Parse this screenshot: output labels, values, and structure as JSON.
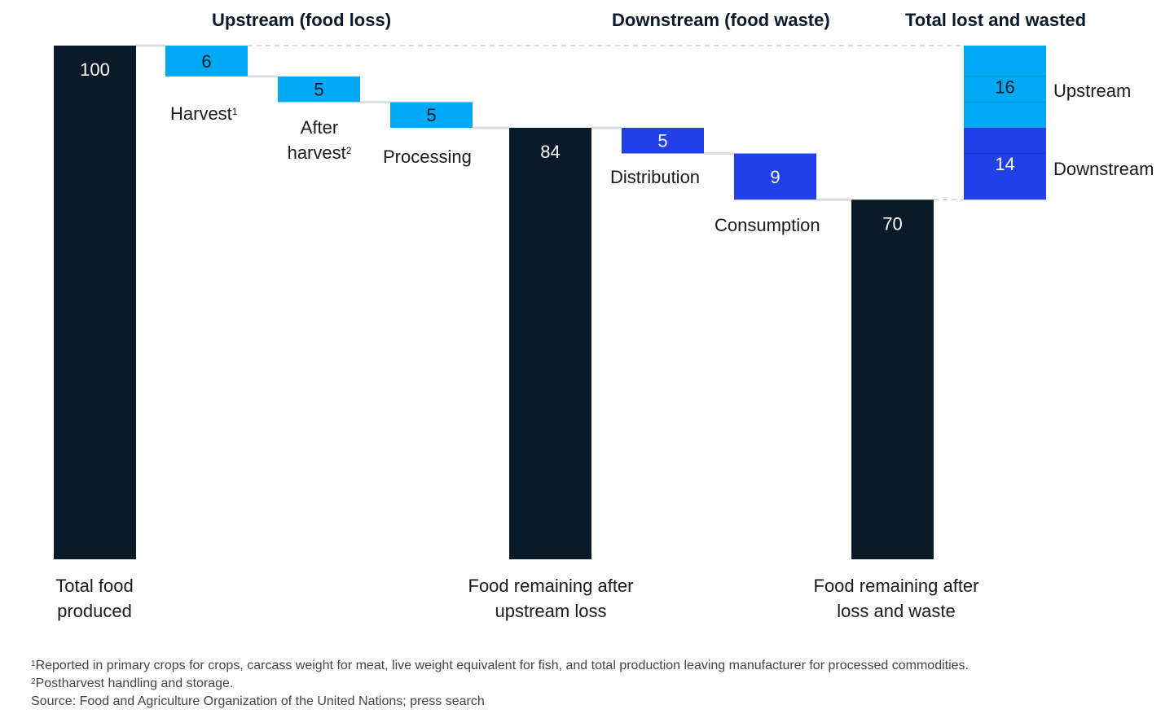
{
  "headers": {
    "upstream": "Upstream (food loss)",
    "downstream": "Downstream (food waste)",
    "total": "Total lost and wasted"
  },
  "colors": {
    "dark": "#0a1a28",
    "upstream": "#00a9f4",
    "downstream": "#2140e8",
    "connector": "#d9dde2"
  },
  "chart_data": {
    "type": "bar",
    "subtype": "waterfall",
    "ylim": [
      0,
      100
    ],
    "grid": false,
    "bars": [
      {
        "key": "total",
        "kind": "total",
        "value": 100,
        "base": 0,
        "label_text": "100",
        "category": "Total food\nproduced",
        "color": "dark"
      },
      {
        "key": "harvest",
        "kind": "loss",
        "value": 6,
        "base": 94,
        "label_text": "6",
        "category": "Harvest",
        "sup": "1",
        "color": "upstream"
      },
      {
        "key": "after_harvest",
        "kind": "loss",
        "value": 5,
        "base": 89,
        "label_text": "5",
        "category": "After\nharvest",
        "sup": "2",
        "color": "upstream"
      },
      {
        "key": "processing",
        "kind": "loss",
        "value": 5,
        "base": 84,
        "label_text": "5",
        "category": "Processing",
        "color": "upstream"
      },
      {
        "key": "after_upstream",
        "kind": "total",
        "value": 84,
        "base": 0,
        "label_text": "84",
        "category": "Food remaining after\nupstream loss",
        "color": "dark"
      },
      {
        "key": "distribution",
        "kind": "loss",
        "value": 5,
        "base": 79,
        "label_text": "5",
        "category": "Distribution",
        "color": "downstream"
      },
      {
        "key": "consumption",
        "kind": "loss",
        "value": 9,
        "base": 70,
        "label_text": "9",
        "category": "Consumption",
        "color": "downstream"
      },
      {
        "key": "after_waste",
        "kind": "total",
        "value": 70,
        "base": 0,
        "label_text": "70",
        "category": "Food remaining after\nloss and waste",
        "color": "dark"
      }
    ],
    "stack": {
      "segments": [
        {
          "key": "upstream",
          "value": 16,
          "label_text": "16",
          "name": "Upstream",
          "color": "upstream"
        },
        {
          "key": "downstream",
          "value": 14,
          "label_text": "14",
          "name": "Downstream",
          "color": "downstream"
        }
      ]
    }
  },
  "labels": {
    "total_food": [
      "Total food",
      "produced"
    ],
    "harvest": "Harvest",
    "harvest_sup": "1",
    "after_harvest": [
      "After",
      "harvest"
    ],
    "after_harvest_sup": "2",
    "processing": "Processing",
    "remaining_upstream": [
      "Food remaining after",
      "upstream loss"
    ],
    "distribution": "Distribution",
    "consumption": "Consumption",
    "remaining_waste": [
      "Food remaining after",
      "loss and waste"
    ],
    "stack_upstream": "Upstream",
    "stack_downstream": "Downstream"
  },
  "footnotes": {
    "note1_sup": "1",
    "note1": "Reported in primary crops for crops, carcass weight for meat, live weight equivalent for fish, and total production leaving manufacturer for processed commodities.",
    "note2_sup": "2",
    "note2": "Postharvest handling and storage.",
    "source": "Source: Food and Agriculture Organization of the United Nations; press search"
  }
}
